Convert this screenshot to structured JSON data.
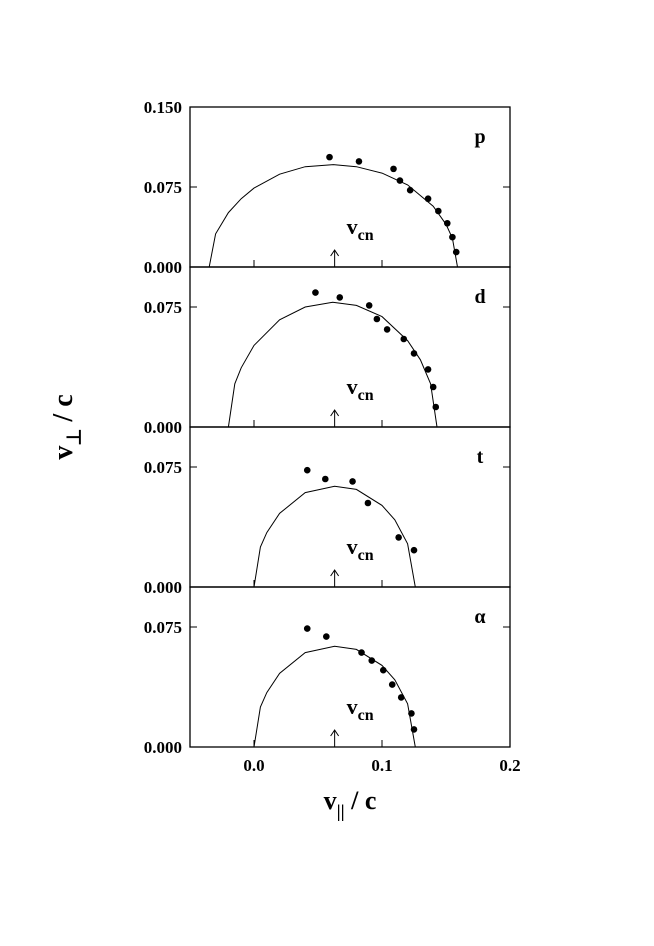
{
  "chart_data": [
    {
      "type": "scatter",
      "label": "p",
      "ylabel": {
        "base": "v",
        "sub": "⊥",
        "rest": " / c"
      },
      "xlim": [
        -0.05,
        0.2
      ],
      "ylim": [
        0,
        0.15
      ],
      "yticks": [
        {
          "value": 0,
          "label": "0.000"
        },
        {
          "value": 0.075,
          "label": "0.075"
        },
        {
          "value": 0.15,
          "label": "0.150"
        }
      ],
      "points": {
        "x": [
          0.059,
          0.082,
          0.109,
          0.114,
          0.122,
          0.136,
          0.144,
          0.151,
          0.155,
          0.158
        ],
        "y": [
          0.103,
          0.099,
          0.092,
          0.081,
          0.072,
          0.064,
          0.0525,
          0.041,
          0.028,
          0.014
        ]
      },
      "curve": {
        "x": [
          -0.035,
          -0.03,
          -0.02,
          -0.01,
          0,
          0.02,
          0.04,
          0.062,
          0.08,
          0.1,
          0.12,
          0.14,
          0.15,
          0.155,
          0.159
        ],
        "y": [
          0,
          0.031,
          0.051,
          0.064,
          0.074,
          0.087,
          0.094,
          0.096,
          0.094,
          0.088,
          0.077,
          0.057,
          0.04,
          0.027,
          0
        ]
      },
      "annotation": {
        "text": "v",
        "sub": "cn",
        "x": 0.063
      }
    },
    {
      "type": "scatter",
      "label": "d",
      "xlim": [
        -0.05,
        0.2
      ],
      "ylim": [
        0,
        0.1
      ],
      "yticks": [
        {
          "value": 0,
          "label": "0.000"
        },
        {
          "value": 0.075,
          "label": "0.075"
        }
      ],
      "points": {
        "x": [
          0.048,
          0.067,
          0.09,
          0.096,
          0.104,
          0.117,
          0.125,
          0.136,
          0.14,
          0.142
        ],
        "y": [
          0.084,
          0.081,
          0.076,
          0.0675,
          0.061,
          0.055,
          0.046,
          0.036,
          0.025,
          0.0125
        ]
      },
      "curve": {
        "x": [
          -0.02,
          -0.015,
          -0.01,
          0,
          0.02,
          0.04,
          0.0615,
          0.08,
          0.1,
          0.12,
          0.13,
          0.138,
          0.143
        ],
        "y": [
          0,
          0.027,
          0.037,
          0.051,
          0.067,
          0.075,
          0.078,
          0.076,
          0.069,
          0.054,
          0.042,
          0.027,
          0
        ]
      },
      "annotation": {
        "text": "v",
        "sub": "cn",
        "x": 0.063
      }
    },
    {
      "type": "scatter",
      "label": "t",
      "xlim": [
        -0.05,
        0.2
      ],
      "ylim": [
        0,
        0.1
      ],
      "yticks": [
        {
          "value": 0,
          "label": "0.000"
        },
        {
          "value": 0.075,
          "label": "0.075"
        }
      ],
      "points": {
        "x": [
          0.0416,
          0.0557,
          0.077,
          0.089,
          0.113,
          0.125
        ],
        "y": [
          0.073,
          0.0675,
          0.066,
          0.0525,
          0.031,
          0.023
        ]
      },
      "curve": {
        "x": [
          0,
          0.005,
          0.01,
          0.02,
          0.04,
          0.063,
          0.08,
          0.1,
          0.11,
          0.12,
          0.126
        ],
        "y": [
          0,
          0.025,
          0.034,
          0.046,
          0.059,
          0.063,
          0.061,
          0.051,
          0.042,
          0.027,
          0
        ]
      },
      "annotation": {
        "text": "v",
        "sub": "cn",
        "x": 0.063
      }
    },
    {
      "type": "scatter",
      "label": "α",
      "xlabel": {
        "base": "v",
        "sub": "||",
        "rest": " / c"
      },
      "xlim": [
        -0.05,
        0.2
      ],
      "ylim": [
        0,
        0.1
      ],
      "xticks": [
        {
          "value": 0,
          "label": "0.0"
        },
        0.1,
        0.2
      ],
      "yticks": [
        {
          "value": 0,
          "label": "0.000"
        },
        {
          "value": 0.075,
          "label": "0.075"
        }
      ],
      "points": {
        "x": [
          0.0416,
          0.0565,
          0.084,
          0.092,
          0.101,
          0.108,
          0.115,
          0.123,
          0.125
        ],
        "y": [
          0.074,
          0.069,
          0.059,
          0.054,
          0.048,
          0.039,
          0.031,
          0.021,
          0.011
        ]
      },
      "curve": {
        "x": [
          0,
          0.005,
          0.01,
          0.02,
          0.04,
          0.063,
          0.08,
          0.1,
          0.11,
          0.12,
          0.126
        ],
        "y": [
          0,
          0.025,
          0.034,
          0.046,
          0.059,
          0.063,
          0.061,
          0.051,
          0.042,
          0.027,
          0
        ]
      },
      "annotation": {
        "text": "v",
        "sub": "cn",
        "x": 0.063
      }
    }
  ]
}
